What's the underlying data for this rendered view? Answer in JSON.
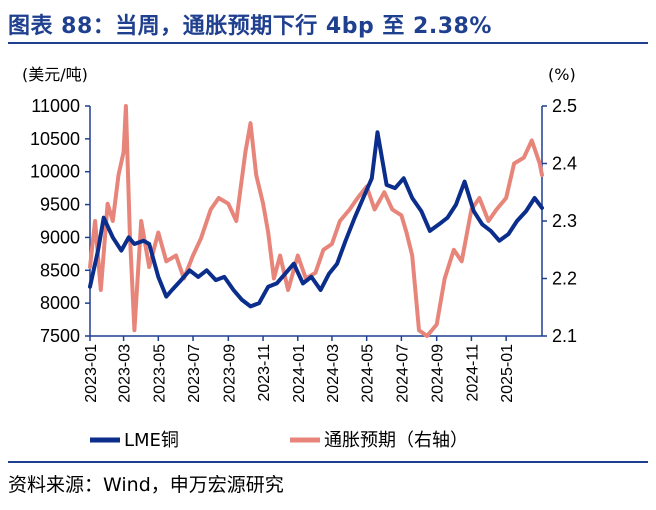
{
  "title": "图表 88：当周，通胀预期下行 4bp 至 2.38%",
  "source": "资料来源：Wind，申万宏源研究",
  "colors": {
    "title": "#1f3f8f",
    "copper": "#0b2d8c",
    "inflation": "#e8857a"
  },
  "chart_data": {
    "type": "line",
    "title": "",
    "y_left": {
      "unit": "(美元/吨)",
      "range": [
        7500,
        11000
      ],
      "ticks": [
        "7500",
        "8000",
        "8500",
        "9000",
        "9500",
        "10000",
        "10500",
        "11000"
      ]
    },
    "y_right": {
      "unit": "(%)",
      "range": [
        2.1,
        2.5
      ],
      "ticks": [
        "2.1",
        "2.2",
        "2.3",
        "2.4",
        "2.5"
      ]
    },
    "x_ticks": [
      "2023-01",
      "2023-03",
      "2023-05",
      "2023-07",
      "2023-09",
      "2023-11",
      "2024-01",
      "2024-03",
      "2024-05",
      "2024-07",
      "2024-09",
      "2024-11",
      "2025-01"
    ],
    "series": [
      {
        "name": "LME铜",
        "axis": "left",
        "x": [
          "2023-01-01",
          "2023-01-15",
          "2023-01-25",
          "2023-02-10",
          "2023-02-25",
          "2023-03-10",
          "2023-03-20",
          "2023-04-05",
          "2023-04-15",
          "2023-05-01",
          "2023-05-15",
          "2023-05-25",
          "2023-06-10",
          "2023-06-25",
          "2023-07-10",
          "2023-07-25",
          "2023-08-10",
          "2023-08-25",
          "2023-09-10",
          "2023-09-25",
          "2023-10-10",
          "2023-10-25",
          "2023-11-10",
          "2023-11-25",
          "2023-12-10",
          "2023-12-25",
          "2024-01-10",
          "2024-01-25",
          "2024-02-10",
          "2024-02-25",
          "2024-03-10",
          "2024-03-25",
          "2024-04-10",
          "2024-04-25",
          "2024-05-10",
          "2024-05-20",
          "2024-06-05",
          "2024-06-20",
          "2024-07-05",
          "2024-07-20",
          "2024-08-05",
          "2024-08-20",
          "2024-09-05",
          "2024-09-20",
          "2024-10-05",
          "2024-10-20",
          "2024-11-05",
          "2024-11-20",
          "2024-12-05",
          "2024-12-20",
          "2025-01-05",
          "2025-01-20",
          "2025-02-05",
          "2025-02-20",
          "2025-03-05"
        ],
        "values": [
          8250,
          8800,
          9300,
          9000,
          8800,
          9000,
          8900,
          8950,
          8900,
          8400,
          8100,
          8200,
          8350,
          8500,
          8400,
          8500,
          8350,
          8400,
          8200,
          8050,
          7950,
          8000,
          8250,
          8300,
          8450,
          8600,
          8300,
          8400,
          8200,
          8450,
          8600,
          8950,
          9300,
          9600,
          9900,
          10600,
          9800,
          9750,
          9900,
          9600,
          9400,
          9100,
          9200,
          9300,
          9500,
          9850,
          9400,
          9200,
          9100,
          8950,
          9050,
          9250,
          9400,
          9600,
          9450
        ]
      },
      {
        "name": "通胀预期（右轴）",
        "axis": "right",
        "x": [
          "2023-01-01",
          "2023-01-10",
          "2023-01-20",
          "2023-02-01",
          "2023-02-10",
          "2023-02-20",
          "2023-03-01",
          "2023-03-05",
          "2023-03-12",
          "2023-03-20",
          "2023-04-01",
          "2023-04-15",
          "2023-05-01",
          "2023-05-15",
          "2023-06-01",
          "2023-06-15",
          "2023-07-01",
          "2023-07-15",
          "2023-08-01",
          "2023-08-15",
          "2023-09-01",
          "2023-09-15",
          "2023-10-01",
          "2023-10-10",
          "2023-10-20",
          "2023-11-01",
          "2023-11-10",
          "2023-11-20",
          "2023-12-01",
          "2023-12-15",
          "2024-01-01",
          "2024-01-15",
          "2024-02-01",
          "2024-02-15",
          "2024-03-01",
          "2024-03-15",
          "2024-04-01",
          "2024-04-15",
          "2024-05-01",
          "2024-05-15",
          "2024-06-01",
          "2024-06-15",
          "2024-07-01",
          "2024-07-10",
          "2024-07-20",
          "2024-08-01",
          "2024-08-15",
          "2024-09-01",
          "2024-09-15",
          "2024-10-01",
          "2024-10-15",
          "2024-11-01",
          "2024-11-15",
          "2024-12-01",
          "2024-12-15",
          "2025-01-01",
          "2025-01-15",
          "2025-02-01",
          "2025-02-15",
          "2025-03-01",
          "2025-03-05"
        ],
        "values": [
          2.22,
          2.3,
          2.18,
          2.33,
          2.3,
          2.38,
          2.42,
          2.5,
          2.28,
          2.11,
          2.3,
          2.22,
          2.28,
          2.23,
          2.24,
          2.2,
          2.24,
          2.27,
          2.32,
          2.34,
          2.33,
          2.3,
          2.42,
          2.47,
          2.38,
          2.33,
          2.28,
          2.2,
          2.24,
          2.18,
          2.24,
          2.2,
          2.21,
          2.25,
          2.26,
          2.3,
          2.32,
          2.34,
          2.36,
          2.32,
          2.35,
          2.32,
          2.31,
          2.28,
          2.24,
          2.11,
          2.1,
          2.12,
          2.2,
          2.25,
          2.23,
          2.32,
          2.34,
          2.3,
          2.32,
          2.34,
          2.4,
          2.41,
          2.44,
          2.4,
          2.38
        ]
      }
    ]
  },
  "legend": {
    "copper": "LME铜",
    "inflation": "通胀预期（右轴）"
  }
}
